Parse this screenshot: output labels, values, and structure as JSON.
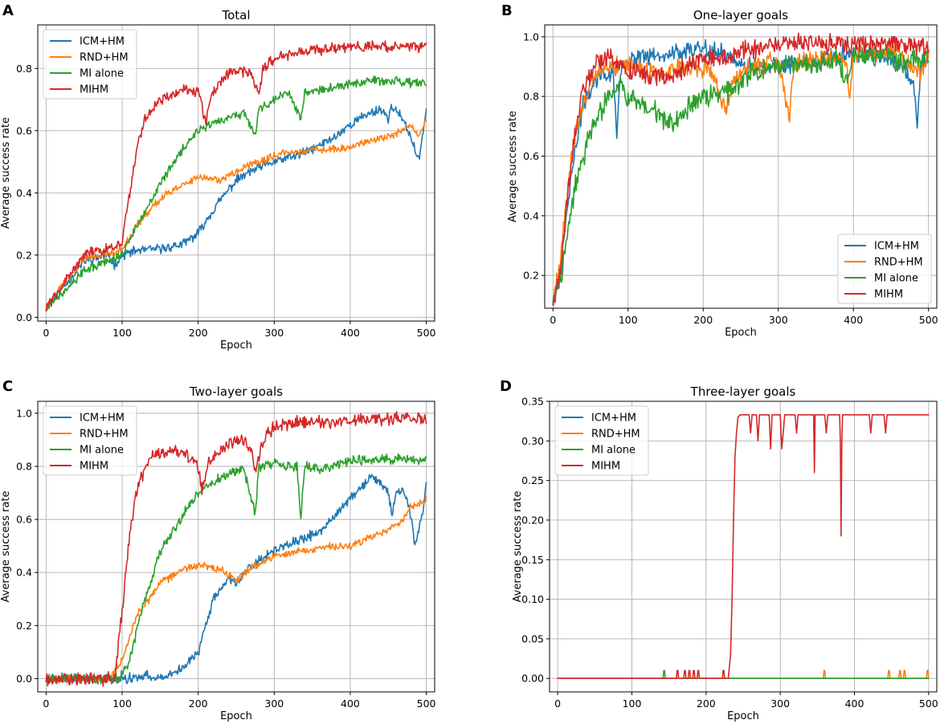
{
  "chart_data": [
    {
      "panel": "A",
      "type": "line",
      "title": "Total",
      "xlabel": "Epoch",
      "ylabel": "Average success rate",
      "xlim": [
        -11,
        511
      ],
      "ylim": [
        -0.012,
        0.94
      ],
      "xticks": [
        0,
        100,
        200,
        300,
        400,
        500
      ],
      "yticks": [
        0.0,
        0.2,
        0.4,
        0.6,
        0.8
      ],
      "xtick_labels": [
        "0",
        "100",
        "200",
        "300",
        "400",
        "500"
      ],
      "ytick_labels": [
        "0.0",
        "0.2",
        "0.4",
        "0.6",
        "0.8"
      ],
      "grid": true,
      "legend_position": "top-left",
      "series": [
        {
          "name": "ICM+HM",
          "color": "#1f77b4",
          "noise": 0.012,
          "seed": 11,
          "x": [
            0,
            20,
            50,
            80,
            90,
            100,
            120,
            150,
            180,
            200,
            210,
            230,
            250,
            270,
            300,
            330,
            350,
            380,
            400,
            420,
            440,
            450,
            455,
            465,
            480,
            490,
            495,
            500
          ],
          "y": [
            0.03,
            0.09,
            0.18,
            0.2,
            0.17,
            0.2,
            0.215,
            0.22,
            0.235,
            0.27,
            0.31,
            0.38,
            0.44,
            0.47,
            0.5,
            0.52,
            0.54,
            0.58,
            0.62,
            0.65,
            0.67,
            0.64,
            0.68,
            0.65,
            0.58,
            0.5,
            0.58,
            0.68
          ]
        },
        {
          "name": "RND+HM",
          "color": "#ff7f0e",
          "noise": 0.01,
          "seed": 22,
          "x": [
            0,
            20,
            50,
            80,
            100,
            120,
            150,
            180,
            200,
            230,
            250,
            280,
            300,
            330,
            350,
            380,
            400,
            430,
            450,
            470,
            480,
            490,
            500
          ],
          "y": [
            0.03,
            0.1,
            0.19,
            0.205,
            0.22,
            0.3,
            0.38,
            0.43,
            0.45,
            0.44,
            0.47,
            0.5,
            0.52,
            0.53,
            0.54,
            0.54,
            0.55,
            0.57,
            0.58,
            0.6,
            0.62,
            0.58,
            0.64
          ]
        },
        {
          "name": "MI alone",
          "color": "#2ca02c",
          "noise": 0.012,
          "seed": 33,
          "x": [
            0,
            20,
            50,
            80,
            100,
            120,
            150,
            180,
            200,
            230,
            260,
            275,
            280,
            300,
            320,
            335,
            340,
            360,
            400,
            430,
            460,
            490,
            500
          ],
          "y": [
            0.03,
            0.08,
            0.15,
            0.18,
            0.2,
            0.3,
            0.43,
            0.54,
            0.6,
            0.63,
            0.66,
            0.58,
            0.67,
            0.7,
            0.72,
            0.64,
            0.72,
            0.73,
            0.75,
            0.76,
            0.76,
            0.75,
            0.75
          ]
        },
        {
          "name": "MIHM",
          "color": "#d62728",
          "noise": 0.014,
          "seed": 44,
          "x": [
            0,
            20,
            50,
            80,
            100,
            110,
            120,
            130,
            150,
            180,
            200,
            210,
            215,
            230,
            250,
            270,
            280,
            285,
            300,
            330,
            360,
            400,
            430,
            460,
            500
          ],
          "y": [
            0.03,
            0.1,
            0.2,
            0.22,
            0.24,
            0.4,
            0.55,
            0.64,
            0.7,
            0.73,
            0.72,
            0.63,
            0.7,
            0.76,
            0.8,
            0.78,
            0.71,
            0.8,
            0.83,
            0.85,
            0.86,
            0.87,
            0.87,
            0.87,
            0.87
          ]
        }
      ]
    },
    {
      "panel": "B",
      "type": "line",
      "title": "One-layer goals",
      "xlabel": "Epoch",
      "ylabel": "Average success rate",
      "xlim": [
        -11,
        511
      ],
      "ylim": [
        0.09,
        1.04
      ],
      "xticks": [
        0,
        100,
        200,
        300,
        400,
        500
      ],
      "yticks": [
        0.2,
        0.4,
        0.6,
        0.8,
        1.0
      ],
      "xtick_labels": [
        "0",
        "100",
        "200",
        "300",
        "400",
        "500"
      ],
      "ytick_labels": [
        "0.2",
        "0.4",
        "0.6",
        "0.8",
        "1.0"
      ],
      "grid": true,
      "legend_position": "bottom-right",
      "series": [
        {
          "name": "ICM+HM",
          "color": "#1f77b4",
          "noise": 0.025,
          "seed": 55,
          "x": [
            0,
            10,
            20,
            30,
            40,
            60,
            80,
            85,
            90,
            100,
            120,
            150,
            180,
            200,
            230,
            250,
            300,
            350,
            400,
            430,
            450,
            470,
            480,
            485,
            490,
            500
          ],
          "y": [
            0.12,
            0.2,
            0.45,
            0.62,
            0.78,
            0.87,
            0.88,
            0.68,
            0.88,
            0.91,
            0.93,
            0.94,
            0.96,
            0.96,
            0.95,
            0.9,
            0.9,
            0.92,
            0.95,
            0.94,
            0.93,
            0.88,
            0.84,
            0.72,
            0.9,
            0.93
          ]
        },
        {
          "name": "RND+HM",
          "color": "#ff7f0e",
          "noise": 0.025,
          "seed": 66,
          "x": [
            0,
            10,
            20,
            30,
            50,
            70,
            100,
            140,
            180,
            210,
            230,
            240,
            260,
            300,
            315,
            320,
            350,
            390,
            395,
            400,
            450,
            470,
            490,
            500
          ],
          "y": [
            0.12,
            0.25,
            0.5,
            0.68,
            0.85,
            0.9,
            0.91,
            0.88,
            0.9,
            0.88,
            0.76,
            0.85,
            0.9,
            0.92,
            0.73,
            0.9,
            0.93,
            0.92,
            0.79,
            0.94,
            0.96,
            0.92,
            0.88,
            0.95
          ]
        },
        {
          "name": "MI alone",
          "color": "#2ca02c",
          "noise": 0.028,
          "seed": 77,
          "x": [
            0,
            10,
            20,
            30,
            50,
            70,
            90,
            100,
            120,
            140,
            160,
            180,
            200,
            240,
            260,
            300,
            350,
            380,
            390,
            400,
            440,
            470,
            480,
            500
          ],
          "y": [
            0.12,
            0.18,
            0.35,
            0.5,
            0.68,
            0.78,
            0.85,
            0.79,
            0.77,
            0.74,
            0.7,
            0.76,
            0.8,
            0.82,
            0.87,
            0.9,
            0.91,
            0.93,
            0.83,
            0.93,
            0.94,
            0.9,
            0.93,
            0.93
          ]
        },
        {
          "name": "MIHM",
          "color": "#d62728",
          "noise": 0.025,
          "seed": 88,
          "x": [
            0,
            10,
            20,
            30,
            40,
            60,
            80,
            100,
            120,
            150,
            180,
            200,
            230,
            250,
            300,
            350,
            400,
            430,
            450,
            500
          ],
          "y": [
            0.12,
            0.22,
            0.48,
            0.7,
            0.82,
            0.92,
            0.93,
            0.88,
            0.87,
            0.86,
            0.9,
            0.93,
            0.92,
            0.95,
            0.98,
            0.98,
            0.98,
            0.97,
            0.98,
            0.96
          ]
        }
      ]
    },
    {
      "panel": "C",
      "type": "line",
      "title": "Two-layer goals",
      "xlabel": "Epoch",
      "ylabel": "Average success rate",
      "xlim": [
        -11,
        511
      ],
      "ylim": [
        -0.05,
        1.045
      ],
      "xticks": [
        0,
        100,
        200,
        300,
        400,
        500
      ],
      "yticks": [
        0.0,
        0.2,
        0.4,
        0.6,
        0.8,
        1.0
      ],
      "xtick_labels": [
        "0",
        "100",
        "200",
        "300",
        "400",
        "500"
      ],
      "ytick_labels": [
        "0.0",
        "0.2",
        "0.4",
        "0.6",
        "0.8",
        "1.0"
      ],
      "grid": true,
      "legend_position": "top-left",
      "series": [
        {
          "name": "ICM+HM",
          "color": "#1f77b4",
          "noise": 0.015,
          "seed": 99,
          "x": [
            0,
            100,
            130,
            160,
            180,
            200,
            210,
            220,
            240,
            250,
            270,
            300,
            330,
            360,
            380,
            400,
            420,
            430,
            440,
            450,
            455,
            460,
            470,
            480,
            485,
            490,
            495,
            500
          ],
          "y": [
            0.0,
            0.0,
            0.01,
            0.01,
            0.04,
            0.1,
            0.2,
            0.3,
            0.38,
            0.36,
            0.43,
            0.48,
            0.52,
            0.55,
            0.62,
            0.68,
            0.74,
            0.76,
            0.74,
            0.7,
            0.62,
            0.7,
            0.72,
            0.6,
            0.5,
            0.55,
            0.62,
            0.74
          ]
        },
        {
          "name": "RND+HM",
          "color": "#ff7f0e",
          "noise": 0.012,
          "seed": 111,
          "x": [
            0,
            85,
            100,
            120,
            150,
            180,
            200,
            230,
            250,
            270,
            300,
            350,
            400,
            450,
            470,
            480,
            490,
            500
          ],
          "y": [
            0.0,
            0.0,
            0.08,
            0.24,
            0.36,
            0.41,
            0.43,
            0.41,
            0.37,
            0.42,
            0.46,
            0.49,
            0.5,
            0.56,
            0.6,
            0.65,
            0.66,
            0.68
          ]
        },
        {
          "name": "MI alone",
          "color": "#2ca02c",
          "noise": 0.015,
          "seed": 122,
          "x": [
            0,
            95,
            110,
            130,
            150,
            180,
            200,
            230,
            260,
            275,
            280,
            300,
            330,
            335,
            340,
            360,
            400,
            450,
            500
          ],
          "y": [
            0.0,
            0.0,
            0.07,
            0.3,
            0.48,
            0.62,
            0.7,
            0.76,
            0.79,
            0.62,
            0.8,
            0.81,
            0.8,
            0.6,
            0.8,
            0.79,
            0.82,
            0.83,
            0.82
          ]
        },
        {
          "name": "MIHM",
          "color": "#d62728",
          "noise": 0.02,
          "seed": 133,
          "x": [
            0,
            90,
            100,
            110,
            120,
            140,
            160,
            180,
            200,
            205,
            215,
            230,
            250,
            270,
            275,
            285,
            300,
            350,
            400,
            450,
            500
          ],
          "y": [
            0.0,
            0.0,
            0.25,
            0.55,
            0.72,
            0.85,
            0.86,
            0.85,
            0.8,
            0.72,
            0.82,
            0.86,
            0.9,
            0.88,
            0.77,
            0.9,
            0.95,
            0.97,
            0.97,
            0.98,
            0.98
          ]
        }
      ]
    },
    {
      "panel": "D",
      "type": "line",
      "title": "Three-layer goals",
      "xlabel": "Epoch",
      "ylabel": "Average success rate",
      "xlim": [
        -11,
        511
      ],
      "ylim": [
        -0.017,
        0.35
      ],
      "xticks": [
        0,
        100,
        200,
        300,
        400,
        500
      ],
      "yticks": [
        0.0,
        0.05,
        0.1,
        0.15,
        0.2,
        0.25,
        0.3,
        0.35
      ],
      "xtick_labels": [
        "0",
        "100",
        "200",
        "300",
        "400",
        "500"
      ],
      "ytick_labels": [
        "0.00",
        "0.05",
        "0.10",
        "0.15",
        "0.20",
        "0.25",
        "0.30",
        "0.35"
      ],
      "grid": true,
      "legend_position": "top-left",
      "series": [
        {
          "name": "ICM+HM",
          "color": "#1f77b4",
          "x": [
            0,
            500
          ],
          "y": [
            0.0,
            0.0
          ]
        },
        {
          "name": "RND+HM",
          "color": "#ff7f0e",
          "x": [
            0,
            358,
            359,
            360,
            361,
            445,
            446,
            447,
            448,
            460,
            461,
            462,
            463,
            466,
            467,
            468,
            469,
            497,
            498,
            499,
            500
          ],
          "y": [
            0.0,
            0.0,
            0.01,
            0.01,
            0.0,
            0.0,
            0.01,
            0.01,
            0.0,
            0.0,
            0.01,
            0.01,
            0.0,
            0.0,
            0.01,
            0.01,
            0.0,
            0.0,
            0.01,
            0.01,
            0.0
          ]
        },
        {
          "name": "MI alone",
          "color": "#2ca02c",
          "x": [
            0,
            142,
            143,
            144,
            145,
            500
          ],
          "y": [
            0.0,
            0.0,
            0.01,
            0.01,
            0.0,
            0.0
          ]
        },
        {
          "name": "MIHM",
          "color": "#d62728",
          "x": [
            0,
            160,
            161,
            162,
            163,
            170,
            171,
            172,
            173,
            176,
            177,
            178,
            179,
            182,
            183,
            184,
            185,
            188,
            189,
            190,
            191,
            222,
            223,
            224,
            225,
            230,
            233,
            235,
            237,
            239,
            241,
            243,
            246,
            250,
            258,
            260,
            262,
            268,
            270,
            272,
            280,
            285,
            287,
            289,
            300,
            302,
            304,
            306,
            320,
            322,
            324,
            330,
            345,
            346,
            347,
            360,
            362,
            364,
            370,
            380,
            381,
            382,
            383,
            384,
            400,
            420,
            422,
            424,
            440,
            442,
            444,
            460,
            470,
            500
          ],
          "y": [
            0.0,
            0.0,
            0.01,
            0.01,
            0.0,
            0.0,
            0.01,
            0.01,
            0.0,
            0.0,
            0.01,
            0.01,
            0.0,
            0.0,
            0.01,
            0.01,
            0.0,
            0.0,
            0.01,
            0.01,
            0.0,
            0.0,
            0.01,
            0.01,
            0.0,
            0.0,
            0.03,
            0.1,
            0.2,
            0.28,
            0.31,
            0.33,
            0.333,
            0.333,
            0.333,
            0.31,
            0.333,
            0.333,
            0.3,
            0.333,
            0.333,
            0.333,
            0.29,
            0.333,
            0.333,
            0.29,
            0.31,
            0.333,
            0.333,
            0.31,
            0.333,
            0.333,
            0.333,
            0.26,
            0.333,
            0.333,
            0.31,
            0.333,
            0.333,
            0.333,
            0.3,
            0.18,
            0.3,
            0.333,
            0.333,
            0.333,
            0.31,
            0.333,
            0.333,
            0.31,
            0.333,
            0.333,
            0.333,
            0.333
          ]
        }
      ]
    }
  ]
}
